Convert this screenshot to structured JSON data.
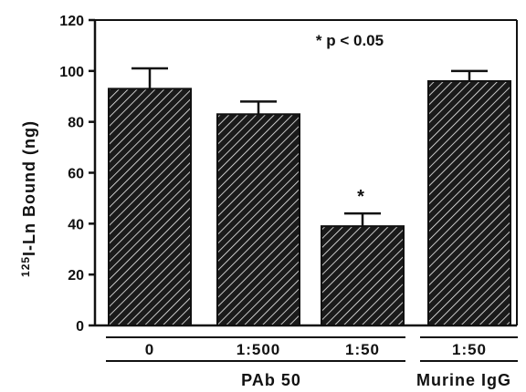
{
  "chart_data": {
    "type": "bar",
    "categories": [
      "0",
      "1:500",
      "1:50",
      "1:50"
    ],
    "values": [
      93,
      83,
      39,
      96
    ],
    "error_upper": [
      101,
      88,
      44,
      100
    ],
    "ylim": [
      0,
      120
    ],
    "yticks": [
      0,
      20,
      40,
      60,
      80,
      100,
      120
    ],
    "ylabel_sup": "125",
    "ylabel": "I-Ln Bound (ng)",
    "xlabel": "",
    "groups": [
      {
        "label": "PAb 50",
        "categories": [
          0,
          1,
          2
        ]
      },
      {
        "label": "Murine IgG",
        "categories": [
          3
        ]
      }
    ],
    "annotation": "* p < 0.05",
    "significance_markers": [
      "",
      "",
      "*",
      ""
    ],
    "grid": false,
    "bar_fill": "diagonal-hatch",
    "colors": {
      "bar": "#1a1a1a",
      "background": "#ffffff",
      "ink": "#111111"
    }
  }
}
